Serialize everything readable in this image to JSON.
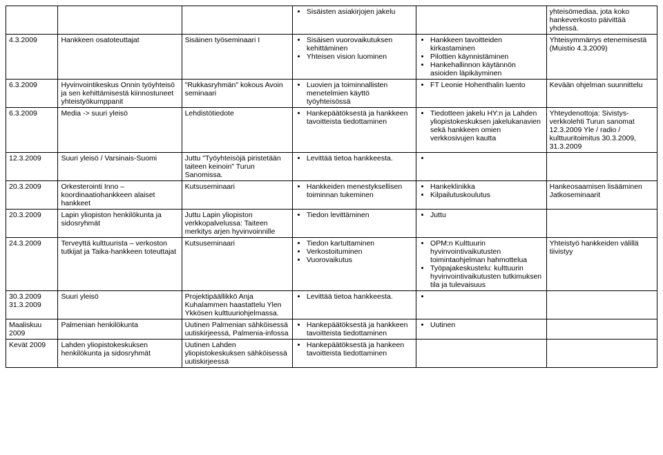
{
  "rows": [
    {
      "c1": "",
      "c2": "",
      "c3": "",
      "c4": [
        "Sisäisten asiakirjojen jakelu"
      ],
      "c5": [],
      "c6_text": "yhteisömediaa, jota koko hankeverkosto päivittää yhdessä."
    },
    {
      "c1": "4.3.2009",
      "c2": "Hankkeen osatoteuttajat",
      "c3": "Sisäinen työseminaari I",
      "c4": [
        "Sisäisen vuorovaikutuksen kehittäminen",
        "Yhteisen vision luominen"
      ],
      "c5": [
        "Hankkeen tavoitteiden kirkastaminen",
        "Pilottien käynnistäminen",
        "Hankehallinnon käytännön asioiden läpikäyminen"
      ],
      "c6_text": "Yhteisymmärrys etenemisestä (Muistio 4.3.2009)"
    },
    {
      "c1": "6.3.2009",
      "c2": "Hyvinvointikeskus Onnin työyhteisö ja sen kehittämisestä kiinnostuneet yhteistyökumppanit",
      "c3": "\"Rukkasryhmän\" kokous Avoin seminaari",
      "c4": [
        "Luovien ja toiminnallisten menetelmien käyttö työyhteisössä"
      ],
      "c5": [
        "FT Leonie Hohenthalin luento"
      ],
      "c6_text": "Kevään ohjelman suunnittelu"
    },
    {
      "c1": "6.3.2009",
      "c2": "Media -> suuri yleisö",
      "c3": "Lehdistötiedote",
      "c4": [
        "Hankepäätöksestä ja hankkeen tavoitteista tiedottaminen"
      ],
      "c5": [
        "Tiedotteen jakelu HY:n ja Lahden yliopistokeskuksen jakelukanavien sekä hankkeen omien verkkosivujen kautta"
      ],
      "c6_text": "Yhteydenottoja: Sivistys-verkkolehti Turun sanomat 12.3.2009 Yle / radio / kulttuuritoimitus 30.3.2009, 31.3.2009"
    },
    {
      "c1": "12.3.2009",
      "c2": "Suuri yleisö / Varsinais-Suomi",
      "c3": "Juttu \"Työyhteisöjä piristetään taiteen keinoin\" Turun Sanomissa.",
      "c4": [
        "Levittää tietoa hankkeesta."
      ],
      "c5": [
        ""
      ],
      "c6_text": ""
    },
    {
      "c1": "20.3.2009",
      "c2": "Orkesterointi Inno – koordinaatiohankkeen alaiset hankkeet",
      "c3": "Kutsuseminaari",
      "c4": [
        "Hankkeiden menestyksellisen toiminnan tukeminen"
      ],
      "c5": [
        "Hankeklinikka",
        "Kilpailutuskoulutus"
      ],
      "c6_text": "Hankeosaamisen lisääminen Jatkoseminaarit"
    },
    {
      "c1": "20.3.2009",
      "c2": "Lapin yliopiston henkilökunta ja sidosryhmät",
      "c3": "Juttu Lapin yliopiston verkkopalvelussa: Taiteen merkitys arjen hyvinvoinnille",
      "c4": [
        "Tiedon levittäminen"
      ],
      "c5": [
        "Juttu"
      ],
      "c6_text": ""
    },
    {
      "c1": "24.3.2009",
      "c2": "Terveyttä kulttuurista – verkoston tutkijat ja Taika-hankkeen toteuttajat",
      "c3": "Kutsuseminaari",
      "c4": [
        "Tiedon kartuttaminen",
        "Verkostoituminen",
        "Vuorovaikutus"
      ],
      "c5": [
        "OPM:n Kulttuurin hyvinvointivaikutusten toimintaohjelman hahmottelua",
        "Työpajakeskustelu: kulttuurin hyvinvointivaikutusten tutkimuksen tila ja tulevaisuus"
      ],
      "c6_text": "Yhteistyö hankkeiden välillä tiivistyy"
    },
    {
      "c1": "30.3.2009 31.3.2009",
      "c2": "Suuri yleisö",
      "c3": "Projektipäällikkö Anja Kuhalammen haastattelu Ylen Ykkösen kulttuuriohjelmassa.",
      "c4": [
        "Levittää tietoa hankkeesta."
      ],
      "c5": [
        ""
      ],
      "c6_text": ""
    },
    {
      "c1": "Maaliskuu 2009",
      "c2": "Palmenian henkilökunta",
      "c3": "Uutinen Palmenian sähköisessä uutiskirjeessä, Palmenia-infossa",
      "c4": [
        "Hankepäätöksestä ja hankkeen tavoitteista tiedottaminen"
      ],
      "c5": [
        "Uutinen"
      ],
      "c6_text": ""
    },
    {
      "c1": "Kevät 2009",
      "c2": "Lahden yliopistokeskuksen henkilökunta ja sidosryhmät",
      "c3": "Uutinen Lahden yliopistokeskuksen sähköisessä uutiskirjeessä",
      "c4": [
        "Hankepäätöksestä ja hankeen tavoitteista tiedottaminen"
      ],
      "c5": [],
      "c6_text": ""
    }
  ]
}
